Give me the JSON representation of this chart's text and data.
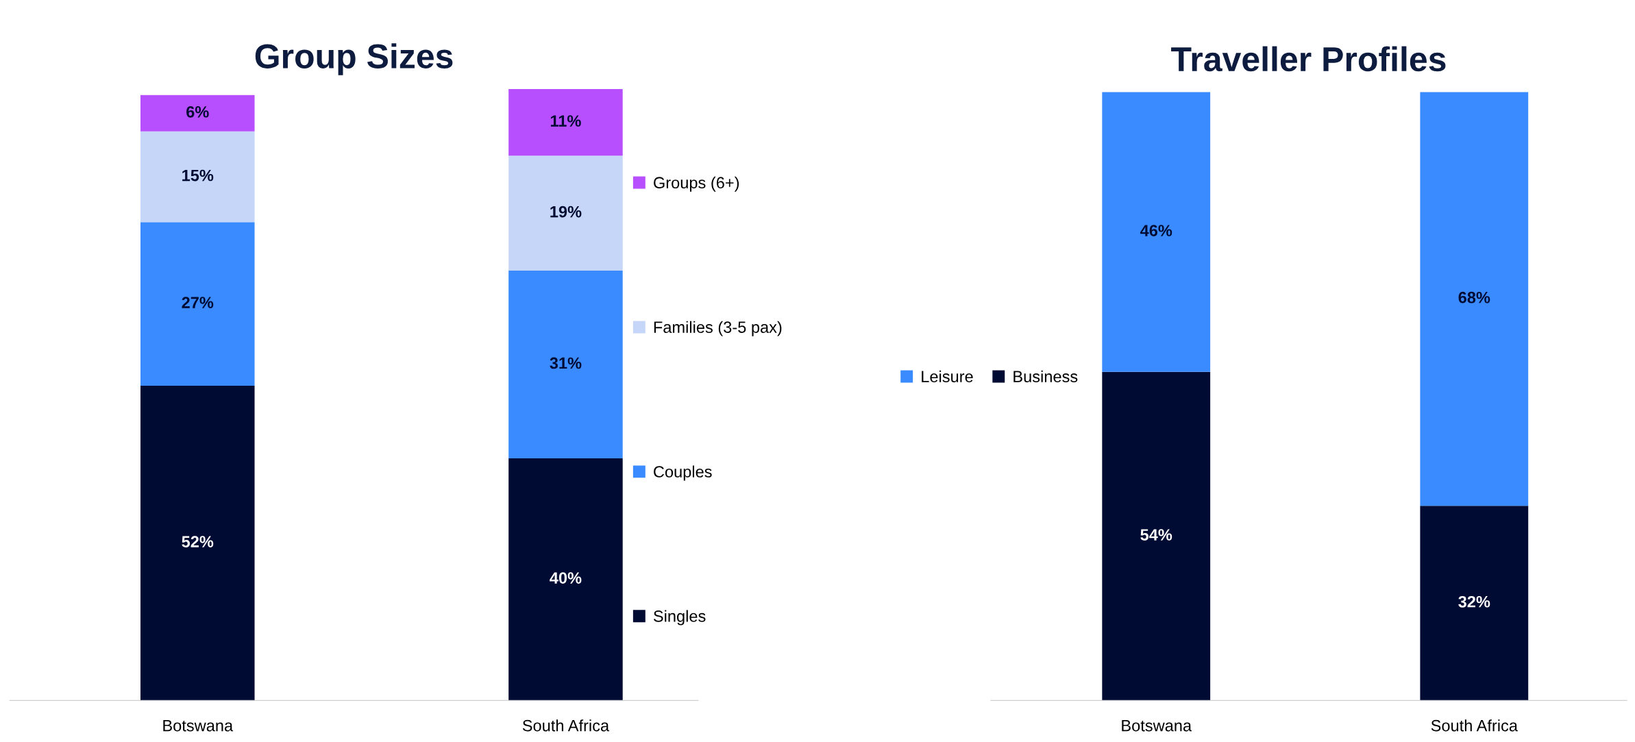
{
  "chart_data": [
    {
      "type": "bar",
      "title": "Group Sizes",
      "categories": [
        "Botswana",
        "South Africa"
      ],
      "stacked": true,
      "legend": "right",
      "tick_labels": "x",
      "series": [
        {
          "name": "Singles",
          "color": "#000b33",
          "values": [
            52,
            40
          ],
          "value_labels": [
            "52%",
            "40%"
          ]
        },
        {
          "name": "Couples",
          "color": "#3a8bff",
          "values": [
            27,
            31
          ],
          "value_labels": [
            "27%",
            "31%"
          ]
        },
        {
          "name": "Families (3-5 pax)",
          "color": "#c5d6f8",
          "values": [
            15,
            19
          ],
          "value_labels": [
            "15%",
            "19%"
          ]
        },
        {
          "name": "Groups (6+)",
          "color": "#b84fff",
          "values": [
            6,
            11
          ],
          "value_labels": [
            "6%",
            "11%"
          ]
        }
      ]
    },
    {
      "type": "bar",
      "title": "Traveller Profiles",
      "categories": [
        "Botswana",
        "South Africa"
      ],
      "stacked": true,
      "legend": "left",
      "tick_labels": "x",
      "series": [
        {
          "name": "Business",
          "color": "#000b33",
          "values": [
            54,
            32
          ],
          "value_labels": [
            "54%",
            "32%"
          ]
        },
        {
          "name": "Leisure",
          "color": "#3a8bff",
          "values": [
            46,
            68
          ],
          "value_labels": [
            "46%",
            "68%"
          ]
        }
      ]
    }
  ]
}
